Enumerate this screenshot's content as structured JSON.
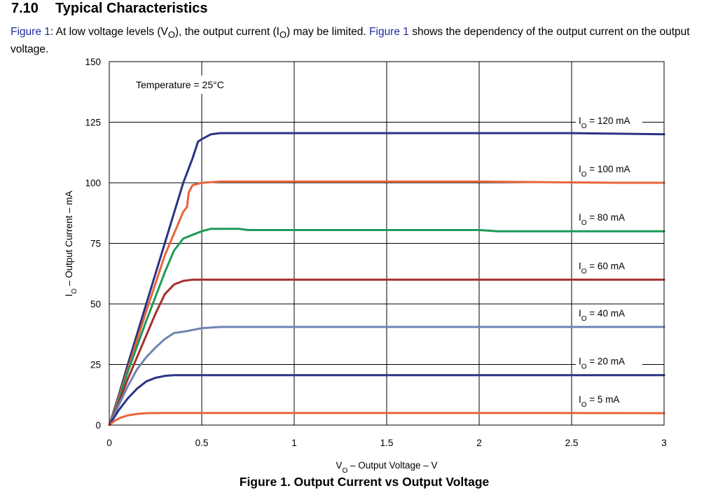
{
  "heading": {
    "number": "7.10",
    "title": "Typical Characteristics"
  },
  "intro": {
    "fig_ref_1": "Figure 1",
    "text_1": ": At low voltage levels (V",
    "sub_o_1": "O",
    "text_2": "), the output current (I",
    "sub_o_2": "O",
    "text_3": ") may be limited. ",
    "fig_ref_2": "Figure 1",
    "text_4": " shows the dependency of the output current on the output voltage."
  },
  "caption": "Figure 1. Output Current vs Output Voltage",
  "chart_data": {
    "type": "line",
    "annotation": "Temperature = 25°C",
    "xlabel": {
      "main": "V",
      "sub": "O",
      "rest": " – Output Voltage – V"
    },
    "ylabel": {
      "main": "I",
      "sub": "O",
      "rest": " – Output Current – mA"
    },
    "xlim": [
      0,
      3
    ],
    "ylim": [
      0,
      150
    ],
    "xticks": [
      0,
      0.5,
      1,
      1.5,
      2,
      2.5,
      3
    ],
    "xtick_labels": [
      "0",
      "0.5",
      "1",
      "1.5",
      "2",
      "2.5",
      "3"
    ],
    "yticks": [
      0,
      25,
      50,
      75,
      100,
      125,
      150
    ],
    "ytick_labels": [
      "0",
      "25",
      "50",
      "75",
      "100",
      "125",
      "150"
    ],
    "grid": true,
    "series": [
      {
        "name": "I",
        "sub": "O",
        "suffix": " = 120 mA",
        "color": "#2b3384",
        "x": [
          0,
          0.05,
          0.1,
          0.2,
          0.3,
          0.4,
          0.45,
          0.48,
          0.5,
          0.55,
          0.6,
          0.8,
          1.5,
          2.5,
          3.0
        ],
        "y": [
          0,
          12,
          25,
          50,
          75,
          100,
          110,
          117,
          118,
          120,
          120.5,
          120.5,
          120.5,
          120.5,
          120
        ]
      },
      {
        "name": "I",
        "sub": "O",
        "suffix": " = 100 mA",
        "color": "#e8643a",
        "x": [
          0,
          0.05,
          0.1,
          0.2,
          0.3,
          0.4,
          0.42,
          0.43,
          0.45,
          0.5,
          0.6,
          1.0,
          2.0,
          2.75,
          3.0
        ],
        "y": [
          0,
          11,
          23,
          47,
          70,
          88,
          90,
          96,
          99,
          100,
          100.5,
          100.5,
          100.5,
          100,
          100
        ]
      },
      {
        "name": "I",
        "sub": "O",
        "suffix": " = 80 mA",
        "color": "#1d9a58",
        "x": [
          0,
          0.05,
          0.1,
          0.2,
          0.3,
          0.35,
          0.4,
          0.5,
          0.55,
          0.7,
          0.75,
          1.0,
          2.0,
          2.1,
          3.0
        ],
        "y": [
          0,
          10,
          22,
          43,
          63,
          72,
          77,
          80,
          81,
          81,
          80.5,
          80.5,
          80.5,
          80,
          80
        ]
      },
      {
        "name": "I",
        "sub": "O",
        "suffix": " = 60 mA",
        "color": "#a6302e",
        "x": [
          0,
          0.05,
          0.1,
          0.2,
          0.25,
          0.3,
          0.35,
          0.4,
          0.45,
          0.5,
          1.0,
          2.0,
          3.0
        ],
        "y": [
          0,
          9,
          19,
          37,
          46,
          54,
          58,
          59.5,
          60,
          60,
          60,
          60,
          60
        ]
      },
      {
        "name": "I",
        "sub": "O",
        "suffix": " = 40 mA",
        "color": "#7084b3",
        "x": [
          0,
          0.05,
          0.1,
          0.15,
          0.2,
          0.25,
          0.3,
          0.35,
          0.4,
          0.5,
          0.6,
          1.0,
          2.0,
          3.0
        ],
        "y": [
          0,
          8,
          16,
          23,
          28,
          32,
          35.5,
          38,
          38.5,
          40,
          40.5,
          40.5,
          40.5,
          40.5
        ]
      },
      {
        "name": "I",
        "sub": "O",
        "suffix": " = 20 mA",
        "color": "#2b3384",
        "x": [
          0,
          0.05,
          0.1,
          0.15,
          0.2,
          0.25,
          0.3,
          0.35,
          0.4,
          0.5,
          1.0,
          2.0,
          3.0
        ],
        "y": [
          0,
          6,
          11,
          15,
          18,
          19.5,
          20.3,
          20.6,
          20.6,
          20.6,
          20.6,
          20.6,
          20.6
        ]
      },
      {
        "name": "I",
        "sub": "O",
        "suffix": " = 5 mA",
        "color": "#e8643a",
        "x": [
          0,
          0.03,
          0.06,
          0.1,
          0.15,
          0.2,
          0.3,
          0.5,
          1.0,
          2.0,
          3.0
        ],
        "y": [
          0,
          1.8,
          3,
          4,
          4.6,
          4.9,
          5,
          5,
          5,
          5,
          4.9
        ]
      }
    ]
  }
}
